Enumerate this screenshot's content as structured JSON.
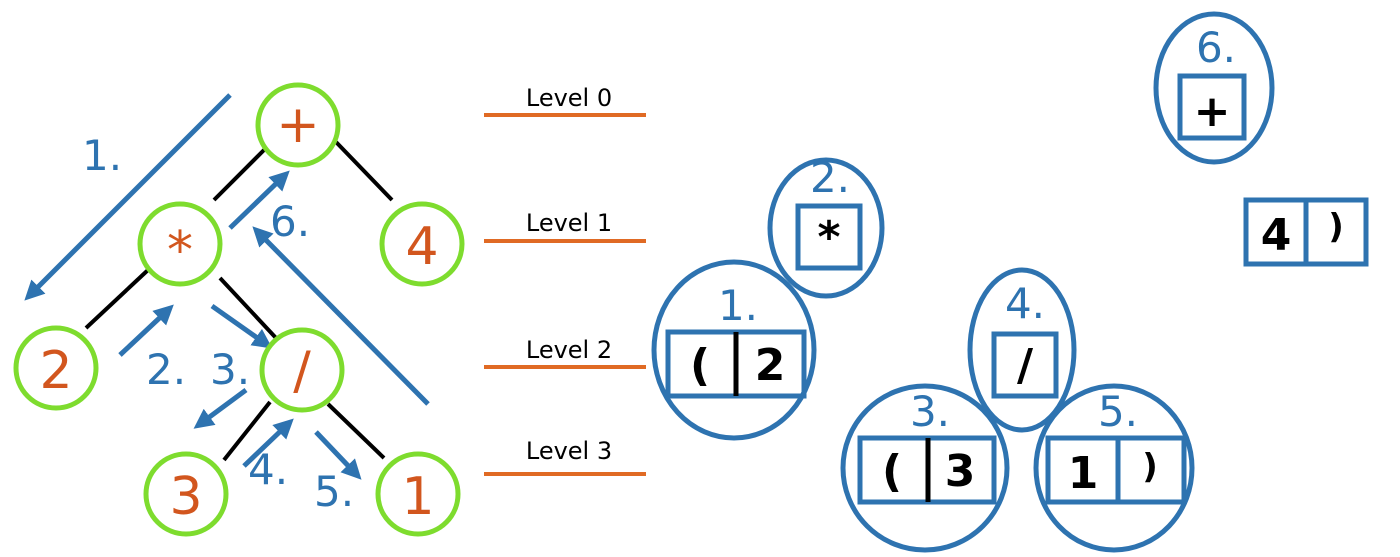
{
  "tree": {
    "nodes": [
      {
        "id": "plus",
        "label": "+"
      },
      {
        "id": "mul",
        "label": "*"
      },
      {
        "id": "four",
        "label": "4"
      },
      {
        "id": "two",
        "label": "2"
      },
      {
        "id": "div",
        "label": "/"
      },
      {
        "id": "three",
        "label": "3"
      },
      {
        "id": "one",
        "label": "1"
      }
    ],
    "edges": [
      [
        "plus",
        "mul"
      ],
      [
        "plus",
        "four"
      ],
      [
        "mul",
        "two"
      ],
      [
        "mul",
        "div"
      ],
      [
        "div",
        "three"
      ],
      [
        "div",
        "one"
      ]
    ],
    "steps": [
      "1.",
      "2.",
      "3.",
      "4.",
      "5.",
      "6."
    ]
  },
  "levels": [
    "Level 0",
    "Level 1",
    "Level 2",
    "Level 3"
  ],
  "groups": [
    {
      "label": "1.",
      "cells": [
        "(",
        "2"
      ]
    },
    {
      "label": "2.",
      "cells": [
        "*"
      ]
    },
    {
      "label": "3.",
      "cells": [
        "(",
        "3"
      ]
    },
    {
      "label": "4.",
      "cells": [
        "/"
      ]
    },
    {
      "label": "5.",
      "cells": [
        "1",
        ")"
      ]
    },
    {
      "label": "6.",
      "cells": [
        "+"
      ]
    }
  ],
  "loose_block": {
    "cells": [
      "4",
      ")"
    ]
  },
  "colors": {
    "node_stroke": "#7edc2e",
    "node_text": "#d2561e",
    "arrow": "#2e73b0",
    "level_line": "#e06a24"
  }
}
